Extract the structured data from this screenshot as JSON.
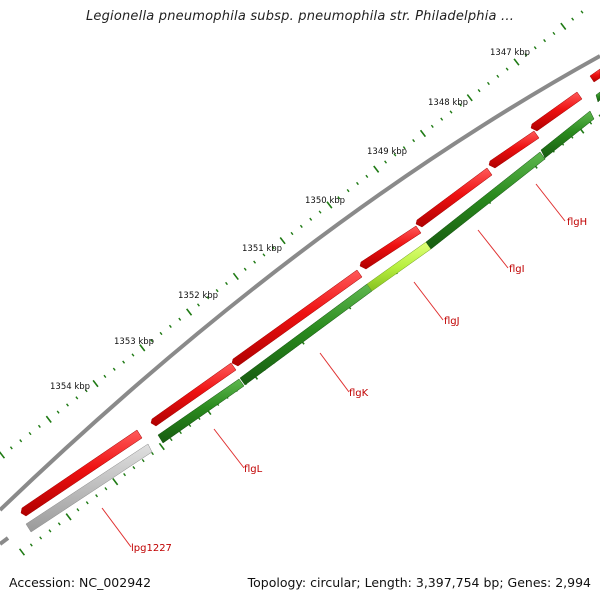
{
  "title": "Legionella pneumophila subsp. pneumophila str. Philadelphia ...",
  "footer": {
    "accession": "Accession: NC_002942",
    "topology": "Topology: circular; Length: 3,397,754 bp; Genes: 2,994"
  },
  "colors": {
    "forward_gene": "#ee1111",
    "reverse_gene": "#2a8a1e",
    "reverse_gene_highlight": "#b8f040",
    "pseudo_gene": "#bdbdbd",
    "backbone": "#8a8a8a",
    "tick": "#1f7a14",
    "label": "#c00000"
  },
  "kbp_labels": [
    "1347 kbp",
    "1348 kbp",
    "1349 kbp",
    "1350 kbp",
    "1351 kbp",
    "1352 kbp",
    "1353 kbp",
    "1354 kbp"
  ],
  "genes": [
    {
      "name": "flgH"
    },
    {
      "name": "flgI"
    },
    {
      "name": "flgJ"
    },
    {
      "name": "flgK"
    },
    {
      "name": "flgL"
    },
    {
      "name": "lpg1227"
    }
  ]
}
